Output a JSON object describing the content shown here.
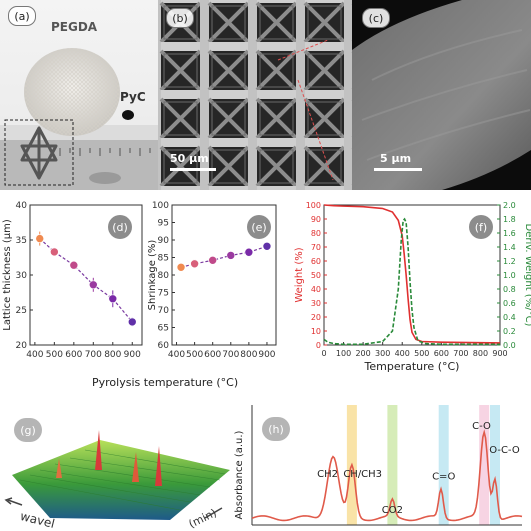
{
  "panels": {
    "a": {
      "label": "(a)",
      "material_top": "PEGDA",
      "material_right": "PyC"
    },
    "b": {
      "label": "(b)",
      "scalebar": "50 μm"
    },
    "c": {
      "label": "(c)",
      "scalebar": "5 μm"
    },
    "d": {
      "label": "(d)"
    },
    "e": {
      "label": "(e)"
    },
    "f": {
      "label": "(f)"
    },
    "g": {
      "label": "(g)",
      "axis_left": "wavel",
      "axis_right": "(min)"
    },
    "h": {
      "label": "(h)",
      "ylabel": "Absorbance (a.u.)"
    }
  },
  "shared_xlabel": "Pyrolysis temperature (°C)",
  "chart_data": [
    {
      "panel": "d",
      "type": "scatter",
      "xlabel": "",
      "ylabel": "Lattice thickness (μm)",
      "xlim": [
        375,
        950
      ],
      "ylim": [
        20,
        40
      ],
      "xticks": [
        400,
        500,
        600,
        700,
        800,
        900
      ],
      "yticks": [
        20,
        25,
        30,
        35,
        40
      ],
      "x": [
        425,
        500,
        600,
        700,
        800,
        900
      ],
      "y": [
        35.2,
        33.3,
        31.4,
        28.6,
        26.6,
        23.3
      ],
      "err": [
        1.0,
        0.5,
        0.5,
        1.0,
        1.2,
        0.6
      ],
      "colors": [
        "#f08a50",
        "#d8607a",
        "#c04a8a",
        "#9a3aa0",
        "#7a2aa8",
        "#6030a8"
      ]
    },
    {
      "panel": "e",
      "type": "scatter",
      "xlabel": "",
      "ylabel": "Shrinkage (%)",
      "xlim": [
        375,
        950
      ],
      "ylim": [
        60,
        100
      ],
      "xticks": [
        400,
        500,
        600,
        700,
        800,
        900
      ],
      "yticks": [
        60,
        65,
        70,
        75,
        80,
        85,
        90,
        95,
        100
      ],
      "x": [
        425,
        500,
        600,
        700,
        800,
        900
      ],
      "y": [
        82.2,
        83.2,
        84.2,
        85.6,
        86.5,
        88.2
      ],
      "err": [
        0,
        0,
        0,
        0,
        0,
        0
      ],
      "colors": [
        "#f08a50",
        "#d8607a",
        "#c04a8a",
        "#9a3aa0",
        "#7a2aa8",
        "#6030a8"
      ]
    },
    {
      "panel": "f",
      "type": "line",
      "xlabel": "Temperature (°C)",
      "ylabel": "Weight (%)",
      "y2label": "Deriv. Weight (%/°C)",
      "xlim": [
        0,
        900
      ],
      "ylim": [
        0,
        100
      ],
      "y2lim": [
        0,
        2.0
      ],
      "xticks": [
        0,
        100,
        200,
        300,
        400,
        500,
        600,
        700,
        800,
        900
      ],
      "yticks": [
        0,
        10,
        20,
        30,
        40,
        50,
        60,
        70,
        80,
        90,
        100
      ],
      "y2ticks": [
        0.0,
        0.2,
        0.4,
        0.6,
        0.8,
        1.0,
        1.2,
        1.4,
        1.6,
        1.8,
        2.0
      ],
      "series": [
        {
          "axis": "left",
          "color": "#e03030",
          "x": [
            0,
            50,
            100,
            200,
            300,
            350,
            380,
            400,
            410,
            420,
            430,
            440,
            450,
            470,
            500,
            600,
            700,
            900
          ],
          "y": [
            100,
            99.5,
            99.2,
            98.8,
            97.5,
            95,
            89,
            78,
            65,
            50,
            33,
            18,
            9,
            4,
            2.5,
            2,
            1.8,
            1.5
          ]
        },
        {
          "axis": "right",
          "color": "#2a8a3a",
          "x": [
            0,
            20,
            50,
            100,
            200,
            300,
            350,
            380,
            395,
            405,
            412,
            420,
            430,
            440,
            450,
            460,
            480,
            520,
            600,
            900
          ],
          "y": [
            0.08,
            0.04,
            0.02,
            0.01,
            0.01,
            0.05,
            0.2,
            0.8,
            1.5,
            1.78,
            1.8,
            1.75,
            1.4,
            0.9,
            0.5,
            0.25,
            0.06,
            0.02,
            0.01,
            0.01
          ]
        }
      ]
    },
    {
      "panel": "h",
      "type": "line",
      "xlabel": "",
      "ylabel": "Absorbance (a.u.)",
      "annotations": [
        "CH2",
        "CH/CH3",
        "CO2",
        "C=O",
        "C-O",
        "O-C-O"
      ],
      "bands": [
        {
          "x": 0.37,
          "color": "#f7d98a"
        },
        {
          "x": 0.52,
          "color": "#c8e6a0"
        },
        {
          "x": 0.71,
          "color": "#b3e2ef"
        },
        {
          "x": 0.86,
          "color": "#f4c6da"
        },
        {
          "x": 0.9,
          "color": "#b3e2ef"
        }
      ]
    }
  ]
}
